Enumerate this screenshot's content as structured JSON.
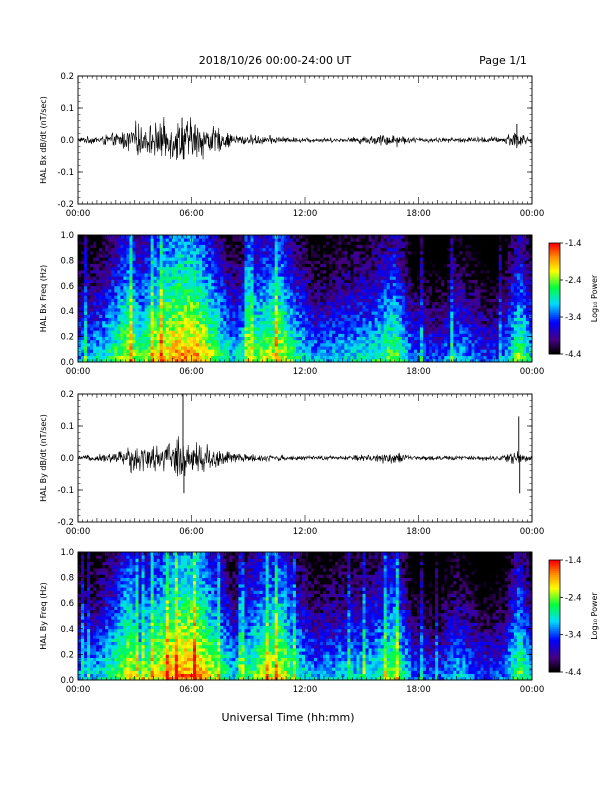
{
  "header": {
    "title": "2018/10/26  00:00-24:00 UT",
    "page": "Page 1/1"
  },
  "footer": {
    "xlabel": "Universal Time (hh:mm)"
  },
  "chart_data": [
    {
      "type": "line",
      "ylabel": "HAL Bx dB/dt (nT/sec)",
      "x_ticks": [
        "00:00",
        "06:00",
        "12:00",
        "18:00",
        "00:00"
      ],
      "y_ticks": [
        "0.2",
        "0.1",
        "0.0",
        "-0.1",
        "-0.2"
      ],
      "xlim_hours": [
        0,
        24
      ],
      "ylim": [
        -0.2,
        0.2
      ],
      "activity": [
        {
          "hour": 0,
          "amp": 0.008
        },
        {
          "hour": 1,
          "amp": 0.012
        },
        {
          "hour": 2,
          "amp": 0.02
        },
        {
          "hour": 2.5,
          "amp": 0.03
        },
        {
          "hour": 3,
          "amp": 0.05
        },
        {
          "hour": 3.5,
          "amp": 0.04
        },
        {
          "hour": 4.5,
          "amp": 0.055
        },
        {
          "hour": 5.3,
          "amp": 0.06
        },
        {
          "hour": 6,
          "amp": 0.065
        },
        {
          "hour": 7,
          "amp": 0.045
        },
        {
          "hour": 8,
          "amp": 0.02
        },
        {
          "hour": 9,
          "amp": 0.015
        },
        {
          "hour": 10.5,
          "amp": 0.012
        },
        {
          "hour": 11,
          "amp": 0.008
        },
        {
          "hour": 14,
          "amp": 0.006
        },
        {
          "hour": 16.8,
          "amp": 0.02
        },
        {
          "hour": 17.5,
          "amp": 0.008
        },
        {
          "hour": 20,
          "amp": 0.007
        },
        {
          "hour": 22.5,
          "amp": 0.01
        },
        {
          "hour": 23.2,
          "amp": 0.035
        },
        {
          "hour": 23.6,
          "amp": 0.015
        },
        {
          "hour": 24,
          "amp": 0.008
        }
      ],
      "spikes": [
        {
          "hour": 5.5,
          "value": 0.07
        },
        {
          "hour": 5.6,
          "value": -0.06
        },
        {
          "hour": 23.2,
          "value": 0.05
        }
      ]
    },
    {
      "type": "heatmap",
      "ylabel": "HAL Bx Freq (Hz)",
      "x_ticks": [
        "00:00",
        "06:00",
        "12:00",
        "18:00",
        "00:00"
      ],
      "y_ticks": [
        "1.0",
        "0.8",
        "0.6",
        "0.4",
        "0.2",
        "0.0"
      ],
      "xlim_hours": [
        0,
        24
      ],
      "ylim": [
        0,
        1.0
      ],
      "colorbar": {
        "label": "Log₁₀ Power",
        "ticks": [
          "-1.4",
          "-2.4",
          "-3.4",
          "-4.4"
        ],
        "range": [
          -4.4,
          -1.4
        ]
      },
      "activity": [
        {
          "hour": 0,
          "level": 0.25
        },
        {
          "hour": 1,
          "level": 0.3
        },
        {
          "hour": 2,
          "level": 0.45
        },
        {
          "hour": 2.7,
          "level": 0.6
        },
        {
          "hour": 3.3,
          "level": 0.45
        },
        {
          "hour": 4.2,
          "level": 0.62
        },
        {
          "hour": 5.5,
          "level": 0.72
        },
        {
          "hour": 6.3,
          "level": 0.7
        },
        {
          "hour": 7,
          "level": 0.55
        },
        {
          "hour": 8.2,
          "level": 0.3
        },
        {
          "hour": 9.5,
          "level": 0.5
        },
        {
          "hour": 10.7,
          "level": 0.6
        },
        {
          "hour": 11.5,
          "level": 0.4
        },
        {
          "hour": 12.5,
          "level": 0.25
        },
        {
          "hour": 14,
          "level": 0.3
        },
        {
          "hour": 15.5,
          "level": 0.35
        },
        {
          "hour": 16.8,
          "level": 0.5
        },
        {
          "hour": 17.7,
          "level": 0.2
        },
        {
          "hour": 19,
          "level": 0.15
        },
        {
          "hour": 20,
          "level": 0.3
        },
        {
          "hour": 21.5,
          "level": 0.15
        },
        {
          "hour": 22.5,
          "level": 0.2
        },
        {
          "hour": 23.3,
          "level": 0.5
        },
        {
          "hour": 24,
          "level": 0.3
        }
      ]
    },
    {
      "type": "line",
      "ylabel": "HAL By dB/dt (nT/sec)",
      "x_ticks": [
        "00:00",
        "06:00",
        "12:00",
        "18:00",
        "00:00"
      ],
      "y_ticks": [
        "0.2",
        "0.1",
        "0.0",
        "-0.1",
        "-0.2"
      ],
      "xlim_hours": [
        0,
        24
      ],
      "ylim": [
        -0.2,
        0.2
      ],
      "activity": [
        {
          "hour": 0,
          "amp": 0.006
        },
        {
          "hour": 1,
          "amp": 0.01
        },
        {
          "hour": 2,
          "amp": 0.018
        },
        {
          "hour": 2.5,
          "amp": 0.03
        },
        {
          "hour": 3,
          "amp": 0.045
        },
        {
          "hour": 3.5,
          "amp": 0.035
        },
        {
          "hour": 4.5,
          "amp": 0.04
        },
        {
          "hour": 5.3,
          "amp": 0.06
        },
        {
          "hour": 6,
          "amp": 0.055
        },
        {
          "hour": 7,
          "amp": 0.04
        },
        {
          "hour": 8,
          "amp": 0.018
        },
        {
          "hour": 9,
          "amp": 0.012
        },
        {
          "hour": 10.5,
          "amp": 0.01
        },
        {
          "hour": 11,
          "amp": 0.007
        },
        {
          "hour": 14,
          "amp": 0.006
        },
        {
          "hour": 16.8,
          "amp": 0.018
        },
        {
          "hour": 17.5,
          "amp": 0.007
        },
        {
          "hour": 20,
          "amp": 0.006
        },
        {
          "hour": 22.5,
          "amp": 0.008
        },
        {
          "hour": 23.2,
          "amp": 0.03
        },
        {
          "hour": 23.6,
          "amp": 0.012
        },
        {
          "hour": 24,
          "amp": 0.006
        }
      ],
      "spikes": [
        {
          "hour": 5.55,
          "value": 0.2
        },
        {
          "hour": 5.6,
          "value": -0.11
        },
        {
          "hour": 23.3,
          "value": 0.13
        },
        {
          "hour": 23.35,
          "value": -0.11
        }
      ]
    },
    {
      "type": "heatmap",
      "ylabel": "HAL By Freq (Hz)",
      "x_ticks": [
        "00:00",
        "06:00",
        "12:00",
        "18:00",
        "00:00"
      ],
      "y_ticks": [
        "1.0",
        "0.8",
        "0.6",
        "0.4",
        "0.2",
        "0.0"
      ],
      "xlim_hours": [
        0,
        24
      ],
      "ylim": [
        0,
        1.0
      ],
      "colorbar": {
        "label": "Log₁₀ Power",
        "ticks": [
          "-1.4",
          "-2.4",
          "-3.4",
          "-4.4"
        ],
        "range": [
          -4.4,
          -1.4
        ]
      },
      "activity": [
        {
          "hour": 0,
          "level": 0.25
        },
        {
          "hour": 1,
          "level": 0.3
        },
        {
          "hour": 2,
          "level": 0.45
        },
        {
          "hour": 2.7,
          "level": 0.62
        },
        {
          "hour": 3.3,
          "level": 0.45
        },
        {
          "hour": 4.2,
          "level": 0.6
        },
        {
          "hour": 5.5,
          "level": 0.74
        },
        {
          "hour": 6.3,
          "level": 0.72
        },
        {
          "hour": 7,
          "level": 0.58
        },
        {
          "hour": 8.2,
          "level": 0.3
        },
        {
          "hour": 9.5,
          "level": 0.5
        },
        {
          "hour": 10.7,
          "level": 0.62
        },
        {
          "hour": 11.5,
          "level": 0.4
        },
        {
          "hour": 12.5,
          "level": 0.25
        },
        {
          "hour": 14,
          "level": 0.3
        },
        {
          "hour": 15.5,
          "level": 0.35
        },
        {
          "hour": 16.8,
          "level": 0.52
        },
        {
          "hour": 17.7,
          "level": 0.2
        },
        {
          "hour": 19,
          "level": 0.15
        },
        {
          "hour": 20,
          "level": 0.3
        },
        {
          "hour": 21.5,
          "level": 0.15
        },
        {
          "hour": 22.5,
          "level": 0.2
        },
        {
          "hour": 23.3,
          "level": 0.5
        },
        {
          "hour": 24,
          "level": 0.3
        }
      ]
    }
  ]
}
